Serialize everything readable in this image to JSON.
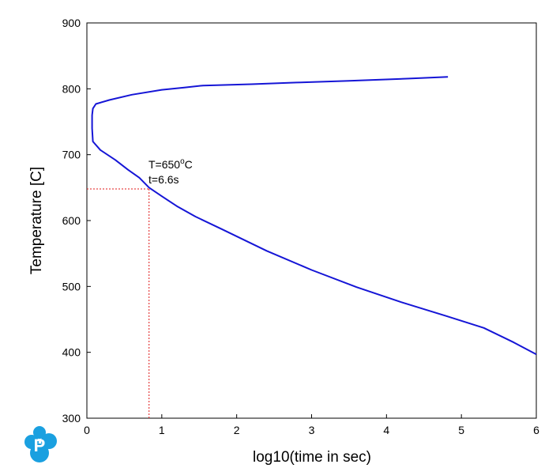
{
  "chart_data": {
    "type": "line",
    "title": "",
    "xlabel": "log10(time in sec)",
    "ylabel": "Temperature [C]",
    "xlim": [
      0,
      6
    ],
    "ylim": [
      300,
      900
    ],
    "x_ticks": [
      0,
      1,
      2,
      3,
      4,
      5,
      6
    ],
    "y_ticks": [
      300,
      400,
      500,
      600,
      700,
      800,
      900
    ],
    "grid": false,
    "legend": "none",
    "series": [
      {
        "color": "#1515d6",
        "points": [
          [
            4.82,
            818
          ],
          [
            4.3,
            815.5
          ],
          [
            3.5,
            812
          ],
          [
            2.8,
            809.5
          ],
          [
            2.2,
            807
          ],
          [
            1.55,
            805
          ],
          [
            1.3,
            802
          ],
          [
            1.0,
            798.5
          ],
          [
            0.6,
            791
          ],
          [
            0.3,
            783
          ],
          [
            0.12,
            777
          ],
          [
            0.08,
            770
          ],
          [
            0.07,
            760
          ],
          [
            0.07,
            740
          ],
          [
            0.08,
            720
          ],
          [
            0.18,
            707
          ],
          [
            0.38,
            692
          ],
          [
            0.55,
            677
          ],
          [
            0.7,
            665
          ],
          [
            0.83,
            650
          ],
          [
            1.0,
            637
          ],
          [
            1.2,
            622
          ],
          [
            1.45,
            606
          ],
          [
            1.8,
            587
          ],
          [
            2.4,
            554
          ],
          [
            3.0,
            525
          ],
          [
            3.6,
            499
          ],
          [
            4.2,
            476
          ],
          [
            4.8,
            455
          ],
          [
            5.3,
            437
          ],
          [
            5.7,
            415
          ],
          [
            6.0,
            397
          ]
        ]
      }
    ],
    "annotations": [
      {
        "x": 0.83,
        "y": 648,
        "line1": "T=650",
        "superscript": "o",
        "line1_suffix": "C",
        "line2": "t=6.6s",
        "guide_color": "#e01818"
      }
    ]
  },
  "logo": {
    "letter": "P",
    "color": "#1aa0e0"
  }
}
